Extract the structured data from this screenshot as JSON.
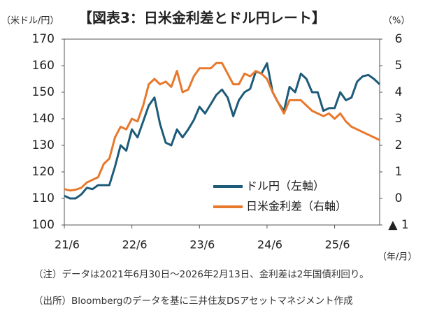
{
  "chart_data": {
    "type": "line",
    "title": "【図表3：日米金利差とドル円レート】",
    "y_label": "（米ドル/円）",
    "y2_label": "（%）",
    "x_label": "（年/月）",
    "categories": [
      "21/6",
      null,
      null,
      null,
      null,
      null,
      null,
      null,
      null,
      null,
      null,
      null,
      "22/6",
      null,
      null,
      null,
      null,
      null,
      null,
      null,
      null,
      null,
      null,
      null,
      "23/6",
      null,
      null,
      null,
      null,
      null,
      null,
      null,
      null,
      null,
      null,
      null,
      "24/6",
      null,
      null,
      null,
      null,
      null,
      null,
      null,
      null,
      null,
      null,
      null,
      "25/6",
      null,
      null,
      null,
      null,
      null,
      null,
      null,
      null
    ],
    "series": [
      {
        "name": "ドル円（左軸）",
        "color": "#1d5b79",
        "axis": "y",
        "values": [
          111,
          110,
          110,
          111.5,
          114,
          113.5,
          115,
          115,
          115,
          122,
          130,
          128,
          136,
          133,
          139,
          145,
          148,
          138,
          131,
          130,
          136,
          133,
          136,
          139.5,
          144.5,
          142,
          145.5,
          149,
          151,
          148,
          141,
          147,
          150,
          151.3,
          157.8,
          157,
          160.9,
          150,
          146,
          143,
          152,
          150,
          157,
          155,
          150,
          150,
          143,
          144,
          144,
          150,
          147,
          148,
          154,
          156,
          156.5,
          155,
          153
        ]
      },
      {
        "name": "日米金利差（右軸）",
        "color": "#e8782c",
        "axis": "y2",
        "values": [
          0.35,
          0.3,
          0.33,
          0.4,
          0.6,
          0.7,
          0.8,
          1.3,
          1.5,
          2.3,
          2.7,
          2.6,
          3.0,
          2.9,
          3.5,
          4.3,
          4.5,
          4.3,
          4.4,
          4.2,
          4.8,
          4.0,
          4.1,
          4.6,
          4.9,
          4.9,
          4.9,
          5.1,
          5.1,
          4.7,
          4.3,
          4.3,
          4.7,
          4.6,
          4.8,
          4.7,
          4.5,
          4.0,
          3.6,
          3.2,
          3.7,
          3.7,
          3.7,
          3.5,
          3.3,
          3.2,
          3.1,
          3.2,
          3.0,
          3.2,
          2.9,
          2.7,
          2.6,
          2.5,
          2.4,
          2.3,
          2.2
        ]
      }
    ],
    "ylim": [
      100,
      170
    ],
    "yticks": [
      100,
      110,
      120,
      130,
      140,
      150,
      160,
      170
    ],
    "y2lim": [
      -1,
      6
    ],
    "y2ticks": [
      {
        "value": -1,
        "label": "▲ 1"
      },
      0,
      1,
      2,
      3,
      4,
      5,
      6
    ],
    "grid": false,
    "legend": "lower right",
    "notes": [
      "（注）データは2021年6月30日～2026年2月13日、金利差は2年国債利回り。",
      "（出所）Bloombergのデータを基に三井住友DSアセットマネジメント作成"
    ]
  }
}
